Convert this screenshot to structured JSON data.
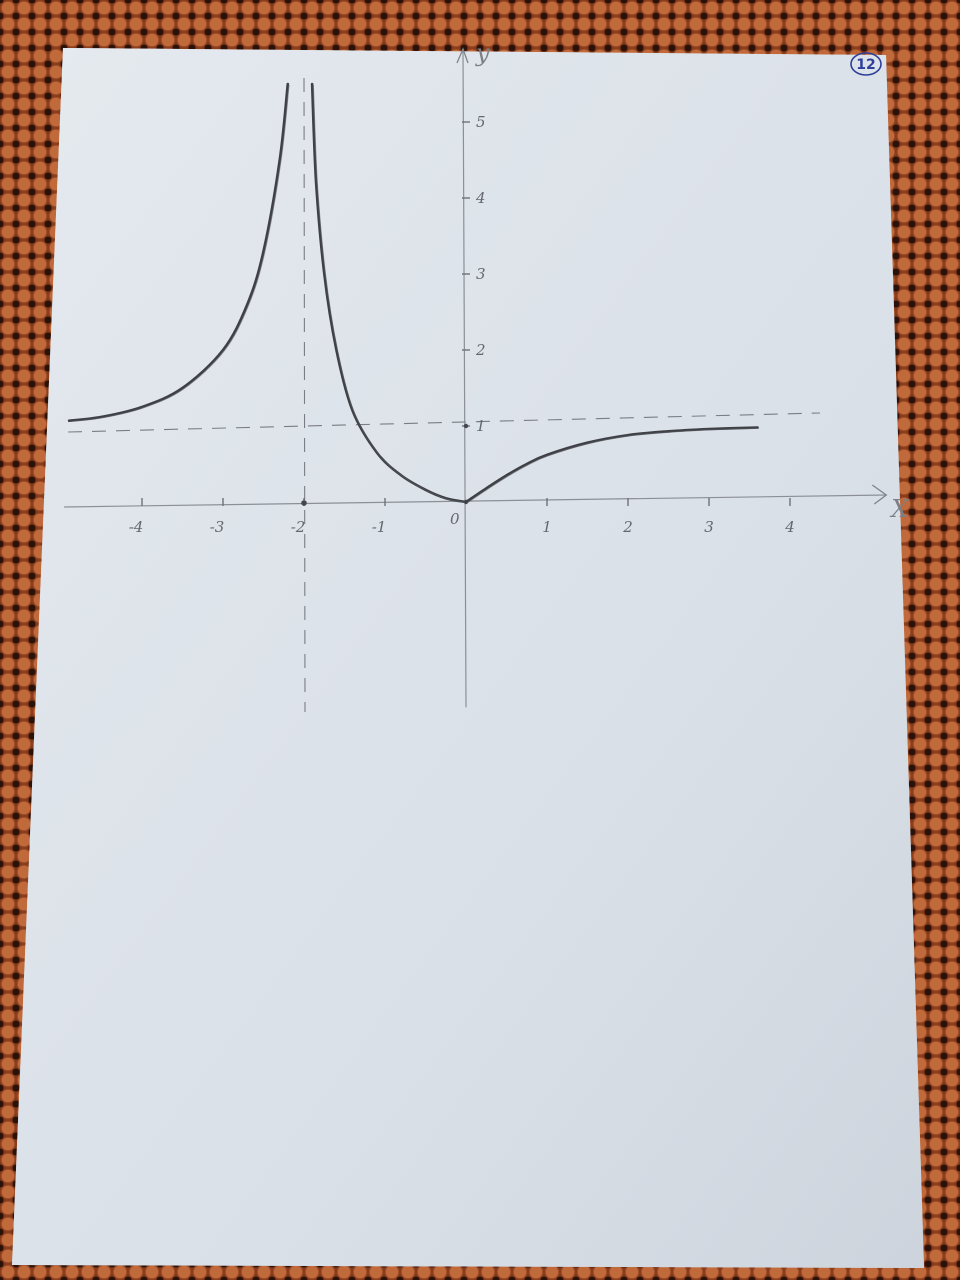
{
  "page_number": "12",
  "chart_data": {
    "type": "line",
    "x_label": "X",
    "y_label": "y",
    "x_ticks": [
      {
        "value": -4,
        "label": "-4"
      },
      {
        "value": -3,
        "label": "-3"
      },
      {
        "value": -2,
        "label": "-2"
      },
      {
        "value": -1,
        "label": "-1"
      },
      {
        "value": 1,
        "label": "1"
      },
      {
        "value": 2,
        "label": "2"
      },
      {
        "value": 3,
        "label": "3"
      },
      {
        "value": 4,
        "label": "4"
      }
    ],
    "y_ticks": [
      {
        "value": 1,
        "label": "1"
      },
      {
        "value": 2,
        "label": "2"
      },
      {
        "value": 3,
        "label": "3"
      },
      {
        "value": 4,
        "label": "4"
      },
      {
        "value": 5,
        "label": "5"
      }
    ],
    "origin_label": "0",
    "xlim": [
      -4.9,
      4.3
    ],
    "ylim": [
      -2.7,
      5.5
    ],
    "asymptotes": {
      "vertical_x": -2,
      "horizontal_y": 1
    },
    "series": [
      {
        "points": [
          [
            -4.9,
            1.07
          ],
          [
            -4.5,
            1.12
          ],
          [
            -4.0,
            1.25
          ],
          [
            -3.5,
            1.5
          ],
          [
            -3.0,
            2.0
          ],
          [
            -2.7,
            2.6
          ],
          [
            -2.5,
            3.3
          ],
          [
            -2.3,
            4.5
          ],
          [
            -2.2,
            5.5
          ]
        ]
      },
      {
        "points": [
          [
            -1.9,
            5.5
          ],
          [
            -1.85,
            4.2
          ],
          [
            -1.75,
            3.0
          ],
          [
            -1.6,
            2.0
          ],
          [
            -1.4,
            1.2
          ],
          [
            -1.1,
            0.65
          ],
          [
            -0.8,
            0.35
          ],
          [
            -0.5,
            0.16
          ],
          [
            -0.25,
            0.05
          ],
          [
            0,
            0
          ]
        ]
      },
      {
        "points": [
          [
            0,
            0
          ],
          [
            0.25,
            0.18
          ],
          [
            0.5,
            0.35
          ],
          [
            0.75,
            0.5
          ],
          [
            1.0,
            0.62
          ],
          [
            1.5,
            0.78
          ],
          [
            2.0,
            0.88
          ],
          [
            2.5,
            0.93
          ],
          [
            3.0,
            0.96
          ],
          [
            3.6,
            0.98
          ]
        ]
      }
    ]
  }
}
